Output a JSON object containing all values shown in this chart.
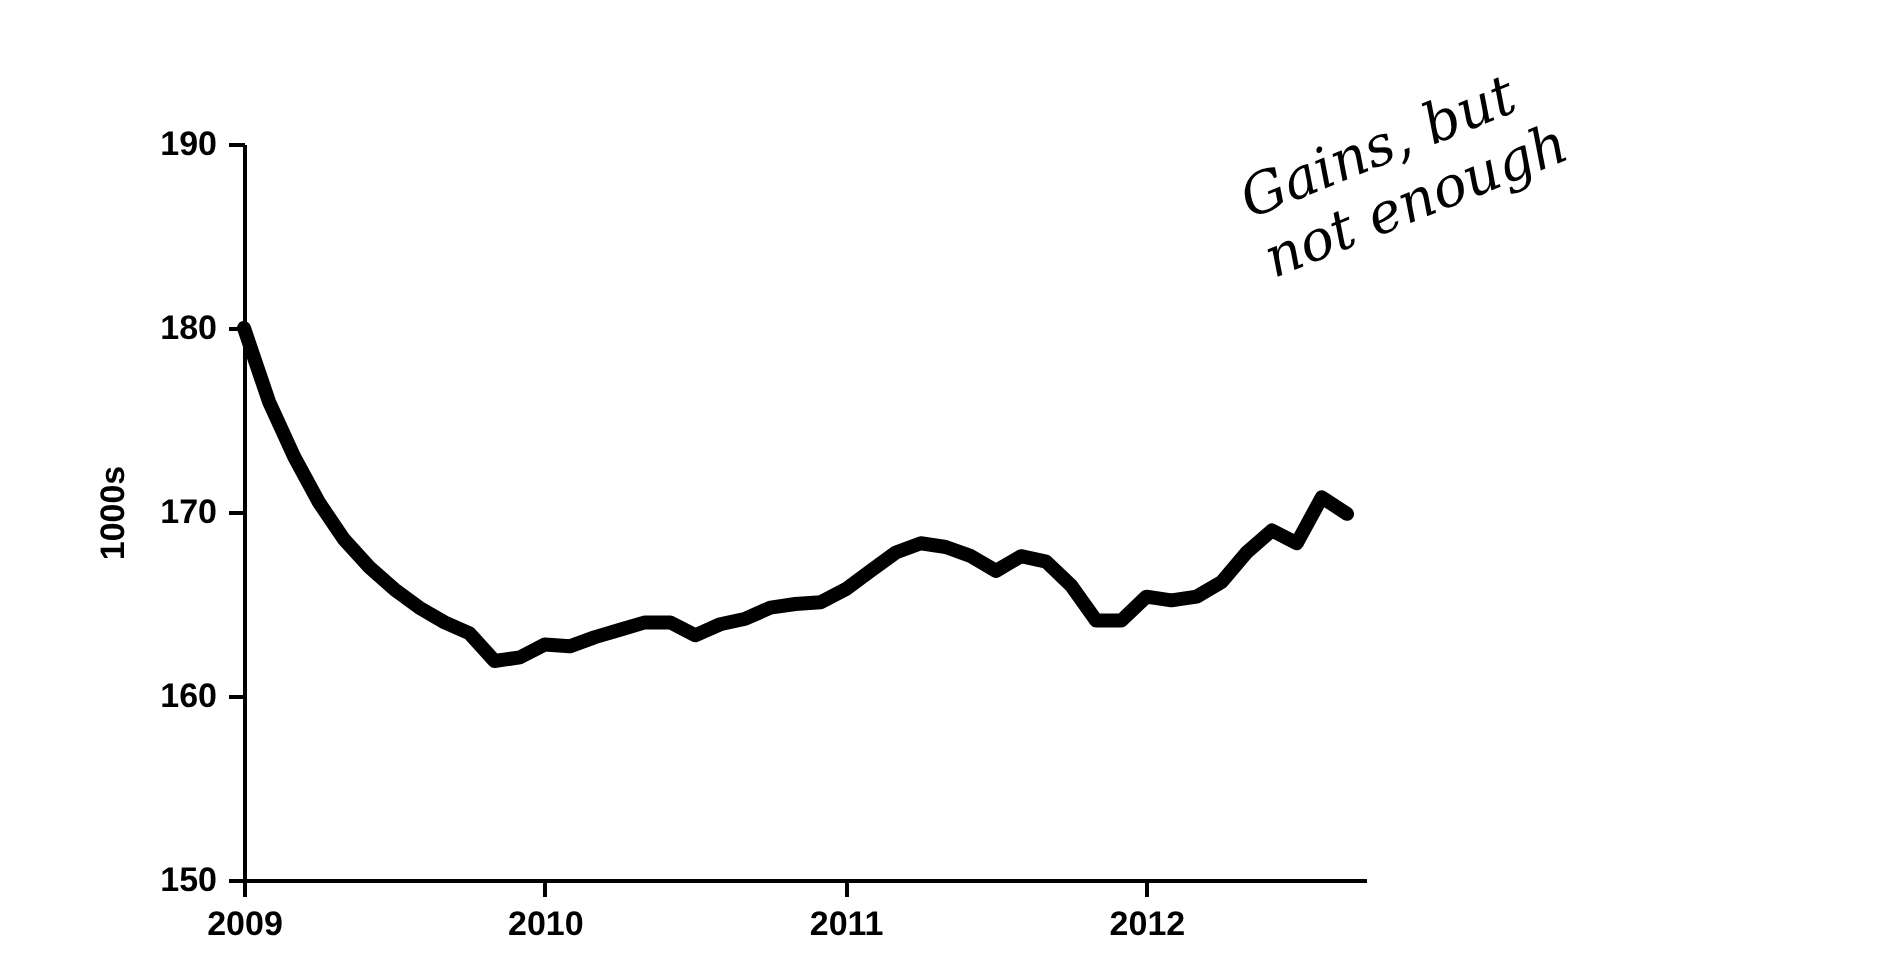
{
  "chart_data": {
    "type": "line",
    "ylabel": "1000s",
    "annotations": [
      "Gains, but not enough"
    ],
    "x": [
      2009,
      2009.083,
      2009.167,
      2009.25,
      2009.333,
      2009.417,
      2009.5,
      2009.583,
      2009.667,
      2009.75,
      2009.833,
      2009.917,
      2010,
      2010.083,
      2010.167,
      2010.25,
      2010.333,
      2010.417,
      2010.5,
      2010.583,
      2010.667,
      2010.75,
      2010.833,
      2010.917,
      2011,
      2011.083,
      2011.167,
      2011.25,
      2011.333,
      2011.417,
      2011.5,
      2011.583,
      2011.667,
      2011.75,
      2011.833,
      2011.917,
      2012,
      2012.083,
      2012.167,
      2012.25,
      2012.333,
      2012.417,
      2012.5,
      2012.583,
      2012.667
    ],
    "series": [
      {
        "color": "#000000",
        "values": [
          180,
          176,
          173,
          170.5,
          168.5,
          167,
          165.8,
          164.8,
          164,
          163.4,
          161.9,
          162.1,
          162.8,
          162.7,
          163.2,
          163.6,
          164,
          164,
          163.3,
          163.9,
          164.2,
          164.8,
          165,
          165.1,
          165.8,
          166.8,
          167.8,
          168.3,
          168.1,
          167.6,
          166.8,
          167.6,
          167.3,
          166,
          164.1,
          164.1,
          165.4,
          165.2,
          165.4,
          166.2,
          167.8,
          169,
          168.3,
          170.8,
          169.9
        ]
      }
    ],
    "xlim": [
      2009,
      2012.73
    ],
    "xticks": [
      2009,
      2010,
      2011,
      2012
    ],
    "ylim": [
      150,
      190
    ],
    "yticks": [
      150,
      160,
      170,
      180,
      190
    ],
    "grid": false,
    "legend": false,
    "marker": "none",
    "line_style": "solid"
  }
}
